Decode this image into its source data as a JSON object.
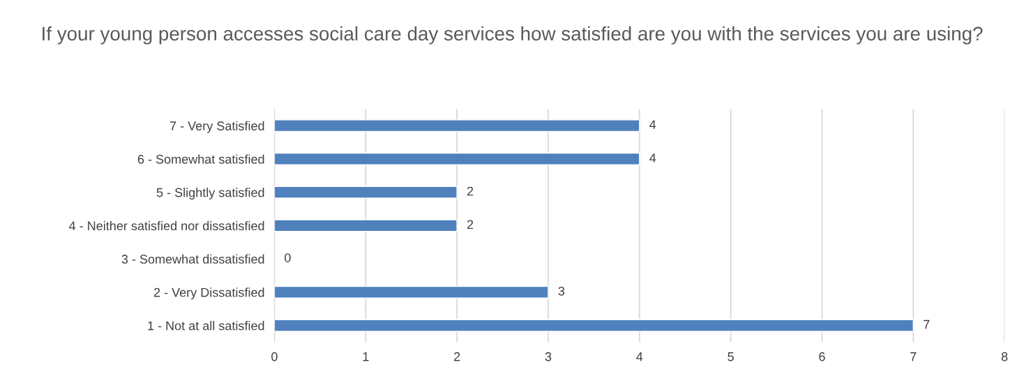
{
  "chart_data": {
    "type": "bar",
    "orientation": "horizontal",
    "title": "If your young person accesses social care day services how satisfied are you with the services you are using?",
    "categories": [
      "7 - Very Satisfied",
      "6 - Somewhat satisfied",
      "5 - Slightly satisfied",
      "4 - Neither satisfied nor dissatisfied",
      "3 - Somewhat dissatisfied",
      "2 - Very Dissatisfied",
      "1 - Not at all satisfied"
    ],
    "values": [
      4,
      4,
      2,
      2,
      0,
      3,
      7
    ],
    "color": "#4f81bd",
    "xlim": [
      0,
      8
    ],
    "xticks": [
      0,
      1,
      2,
      3,
      4,
      5,
      6,
      7,
      8
    ],
    "grid": "x",
    "data_labels": true
  }
}
